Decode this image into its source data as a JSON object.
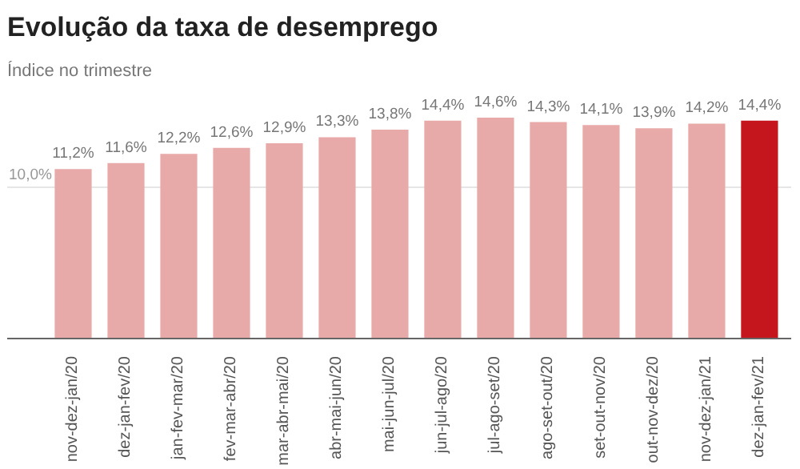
{
  "chart_data": {
    "type": "bar",
    "title": "Evolução da taxa de desemprego",
    "subtitle": "Índice no trimestre",
    "categories": [
      "nov-dez-jan/20",
      "dez-jan-fev/20",
      "jan-fev-mar/20",
      "fev-mar-abr/20",
      "mar-abr-mai/20",
      "abr-mai-jun/20",
      "mai-jun-jul/20",
      "jun-jul-ago/20",
      "jul-ago-set/20",
      "ago-set-out/20",
      "set-out-nov/20",
      "out-nov-dez/20",
      "nov-dez-jan/21",
      "dez-jan-fev/21"
    ],
    "values": [
      11.2,
      11.6,
      12.2,
      12.6,
      12.9,
      13.3,
      13.8,
      14.4,
      14.6,
      14.3,
      14.1,
      13.9,
      14.2,
      14.4
    ],
    "value_labels": [
      "11,2%",
      "11,6%",
      "12,2%",
      "12,6%",
      "12,9%",
      "13,3%",
      "13,8%",
      "14,4%",
      "14,6%",
      "14,3%",
      "14,1%",
      "13,9%",
      "14,2%",
      "14,4%"
    ],
    "colors": [
      "#e8aaa8",
      "#e8aaa8",
      "#e8aaa8",
      "#e8aaa8",
      "#e8aaa8",
      "#e8aaa8",
      "#e8aaa8",
      "#e8aaa8",
      "#e8aaa8",
      "#e8aaa8",
      "#e8aaa8",
      "#e8aaa8",
      "#e8aaa8",
      "#c4161c"
    ],
    "ref_lines": [
      {
        "axis": "y",
        "value": 10,
        "label": "10,0%",
        "color": "#e6e6e6"
      }
    ]
  }
}
